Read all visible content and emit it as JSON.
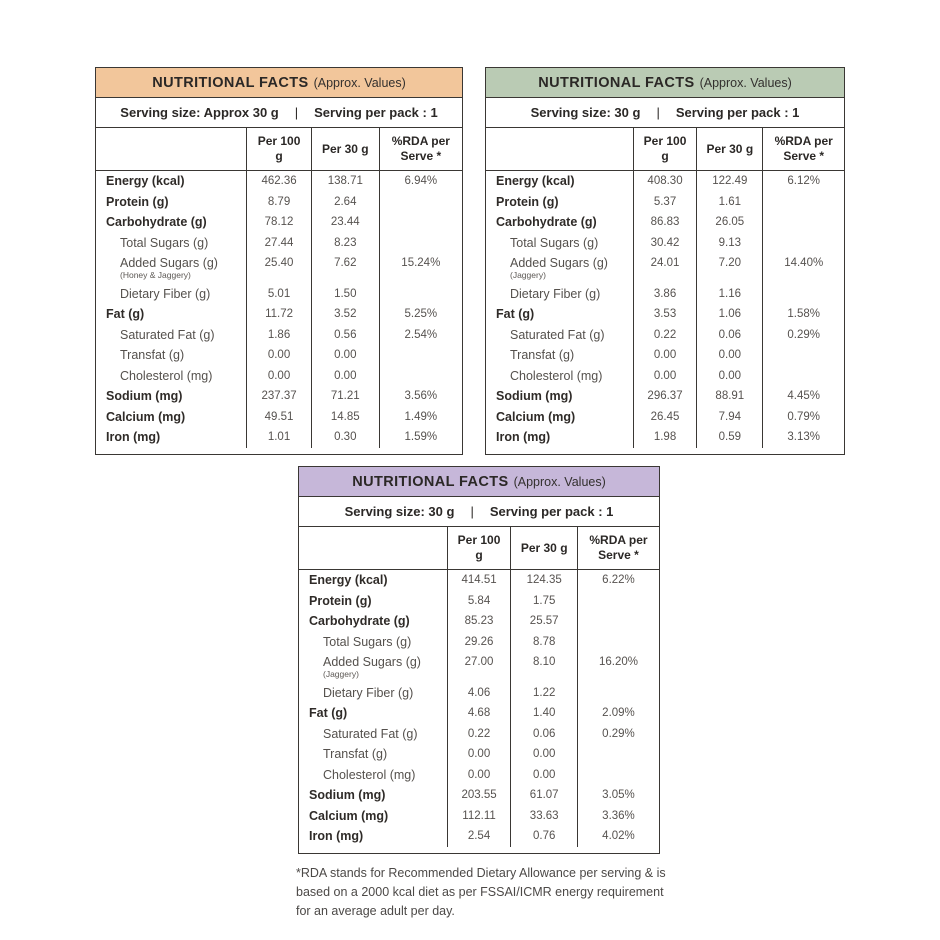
{
  "footnote": "*RDA stands for Recommended Dietary Allowance per serving & is based on a 2000 kcal diet as per FSSAI/ICMR energy requirement for an average adult per day.",
  "tables": [
    {
      "title": "NUTRITIONAL FACTS",
      "title_suffix": "(Approx. Values)",
      "accent_color": "#f2c69b",
      "serving_size": "Serving size: Approx 30 g",
      "serving_separator": "|",
      "serving_pack": "Serving per pack : 1",
      "columns": [
        "Per 100 g",
        "Per 30 g",
        "%RDA per Serve *"
      ],
      "rows": [
        {
          "label": "Energy (kcal)",
          "bold": true,
          "per100": "462.36",
          "per30": "138.71",
          "rda": "6.94%"
        },
        {
          "label": "Protein (g)",
          "bold": true,
          "per100": "8.79",
          "per30": "2.64",
          "rda": ""
        },
        {
          "label": "Carbohydrate (g)",
          "bold": true,
          "per100": "78.12",
          "per30": "23.44",
          "rda": ""
        },
        {
          "label": "Total Sugars (g)",
          "indent": true,
          "per100": "27.44",
          "per30": "8.23",
          "rda": ""
        },
        {
          "label": "Added Sugars (g)",
          "sublabel": "(Honey & Jaggery)",
          "indent": true,
          "per100": "25.40",
          "per30": "7.62",
          "rda": "15.24%"
        },
        {
          "label": "Dietary Fiber (g)",
          "indent": true,
          "per100": "5.01",
          "per30": "1.50",
          "rda": ""
        },
        {
          "label": "Fat (g)",
          "bold": true,
          "per100": "11.72",
          "per30": "3.52",
          "rda": "5.25%"
        },
        {
          "label": "Saturated Fat (g)",
          "indent": true,
          "per100": "1.86",
          "per30": "0.56",
          "rda": "2.54%"
        },
        {
          "label": "Transfat (g)",
          "indent": true,
          "per100": "0.00",
          "per30": "0.00",
          "rda": ""
        },
        {
          "label": "Cholesterol (mg)",
          "indent": true,
          "per100": "0.00",
          "per30": "0.00",
          "rda": ""
        },
        {
          "label": "Sodium (mg)",
          "bold": true,
          "per100": "237.37",
          "per30": "71.21",
          "rda": "3.56%"
        },
        {
          "label": "Calcium (mg)",
          "bold": true,
          "per100": "49.51",
          "per30": "14.85",
          "rda": "1.49%"
        },
        {
          "label": "Iron (mg)",
          "bold": true,
          "per100": "1.01",
          "per30": "0.30",
          "rda": "1.59%"
        }
      ]
    },
    {
      "title": "NUTRITIONAL FACTS",
      "title_suffix": "(Approx. Values)",
      "accent_color": "#bacbb4",
      "serving_size": "Serving size: 30 g",
      "serving_separator": "|",
      "serving_pack": "Serving per pack : 1",
      "columns": [
        "Per 100 g",
        "Per 30 g",
        "%RDA per Serve *"
      ],
      "rows": [
        {
          "label": "Energy (kcal)",
          "bold": true,
          "per100": "408.30",
          "per30": "122.49",
          "rda": "6.12%"
        },
        {
          "label": "Protein (g)",
          "bold": true,
          "per100": "5.37",
          "per30": "1.61",
          "rda": ""
        },
        {
          "label": "Carbohydrate (g)",
          "bold": true,
          "per100": "86.83",
          "per30": "26.05",
          "rda": ""
        },
        {
          "label": "Total Sugars (g)",
          "indent": true,
          "per100": "30.42",
          "per30": "9.13",
          "rda": ""
        },
        {
          "label": "Added Sugars (g)",
          "sublabel": "(Jaggery)",
          "indent": true,
          "per100": "24.01",
          "per30": "7.20",
          "rda": "14.40%"
        },
        {
          "label": "Dietary Fiber (g)",
          "indent": true,
          "per100": "3.86",
          "per30": "1.16",
          "rda": ""
        },
        {
          "label": "Fat (g)",
          "bold": true,
          "per100": "3.53",
          "per30": "1.06",
          "rda": "1.58%"
        },
        {
          "label": "Saturated Fat (g)",
          "indent": true,
          "per100": "0.22",
          "per30": "0.06",
          "rda": "0.29%"
        },
        {
          "label": "Transfat (g)",
          "indent": true,
          "per100": "0.00",
          "per30": "0.00",
          "rda": ""
        },
        {
          "label": "Cholesterol (mg)",
          "indent": true,
          "per100": "0.00",
          "per30": "0.00",
          "rda": ""
        },
        {
          "label": "Sodium (mg)",
          "bold": true,
          "per100": "296.37",
          "per30": "88.91",
          "rda": "4.45%"
        },
        {
          "label": "Calcium (mg)",
          "bold": true,
          "per100": "26.45",
          "per30": "7.94",
          "rda": "0.79%"
        },
        {
          "label": "Iron (mg)",
          "bold": true,
          "per100": "1.98",
          "per30": "0.59",
          "rda": "3.13%"
        }
      ]
    },
    {
      "title": "NUTRITIONAL FACTS",
      "title_suffix": "(Approx. Values)",
      "accent_color": "#c6b7d9",
      "serving_size": "Serving size: 30 g",
      "serving_separator": "|",
      "serving_pack": "Serving per pack : 1",
      "columns": [
        "Per 100 g",
        "Per 30 g",
        "%RDA per Serve *"
      ],
      "rows": [
        {
          "label": "Energy (kcal)",
          "bold": true,
          "per100": "414.51",
          "per30": "124.35",
          "rda": "6.22%"
        },
        {
          "label": "Protein (g)",
          "bold": true,
          "per100": "5.84",
          "per30": "1.75",
          "rda": ""
        },
        {
          "label": "Carbohydrate (g)",
          "bold": true,
          "per100": "85.23",
          "per30": "25.57",
          "rda": ""
        },
        {
          "label": "Total Sugars (g)",
          "indent": true,
          "per100": "29.26",
          "per30": "8.78",
          "rda": ""
        },
        {
          "label": "Added Sugars (g)",
          "sublabel": "(Jaggery)",
          "indent": true,
          "per100": "27.00",
          "per30": "8.10",
          "rda": "16.20%"
        },
        {
          "label": "Dietary Fiber (g)",
          "indent": true,
          "per100": "4.06",
          "per30": "1.22",
          "rda": ""
        },
        {
          "label": "Fat (g)",
          "bold": true,
          "per100": "4.68",
          "per30": "1.40",
          "rda": "2.09%"
        },
        {
          "label": "Saturated Fat (g)",
          "indent": true,
          "per100": "0.22",
          "per30": "0.06",
          "rda": "0.29%"
        },
        {
          "label": "Transfat (g)",
          "indent": true,
          "per100": "0.00",
          "per30": "0.00",
          "rda": ""
        },
        {
          "label": "Cholesterol (mg)",
          "indent": true,
          "per100": "0.00",
          "per30": "0.00",
          "rda": ""
        },
        {
          "label": "Sodium (mg)",
          "bold": true,
          "per100": "203.55",
          "per30": "61.07",
          "rda": "3.05%"
        },
        {
          "label": "Calcium (mg)",
          "bold": true,
          "per100": "112.11",
          "per30": "33.63",
          "rda": "3.36%"
        },
        {
          "label": "Iron (mg)",
          "bold": true,
          "per100": "2.54",
          "per30": "0.76",
          "rda": "4.02%"
        }
      ]
    }
  ]
}
